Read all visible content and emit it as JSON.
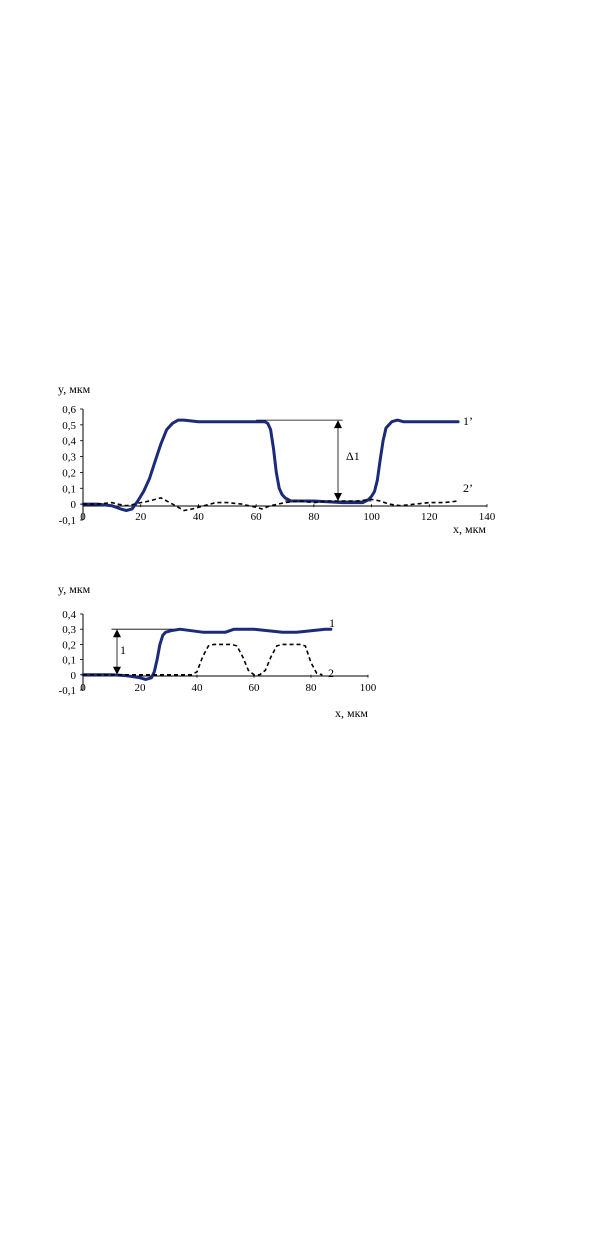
{
  "chart_data": [
    {
      "type": "line",
      "ylabel": "y, мкм",
      "xlabel": "x, мкм",
      "xlim": [
        0,
        140
      ],
      "ylim": [
        -0.1,
        0.6
      ],
      "x_ticks": [
        "0",
        "20",
        "40",
        "60",
        "80",
        "100",
        "120",
        "140"
      ],
      "y_ticks": [
        "-0,1",
        "0",
        "0,1",
        "0,2",
        "0,3",
        "0,4",
        "0,5",
        "0,6"
      ],
      "series": [
        {
          "name": "1’",
          "style": "solid",
          "color": "#1c2a7a",
          "x": [
            0,
            5,
            10,
            13,
            15,
            17,
            19,
            21,
            23,
            25,
            27,
            29,
            31,
            33,
            35,
            40,
            50,
            60,
            63,
            64,
            65,
            66,
            67,
            68,
            69,
            70,
            72,
            75,
            80,
            90,
            95,
            97,
            98,
            99,
            100,
            101,
            102,
            103,
            104,
            105,
            107,
            109,
            111,
            115,
            130
          ],
          "y": [
            0,
            0,
            -0.01,
            -0.03,
            -0.04,
            -0.03,
            0.02,
            0.08,
            0.16,
            0.27,
            0.38,
            0.47,
            0.51,
            0.53,
            0.53,
            0.52,
            0.52,
            0.52,
            0.52,
            0.51,
            0.47,
            0.35,
            0.2,
            0.1,
            0.06,
            0.04,
            0.02,
            0.02,
            0.02,
            0.01,
            0.01,
            0.01,
            0.02,
            0.03,
            0.05,
            0.08,
            0.15,
            0.28,
            0.4,
            0.48,
            0.52,
            0.53,
            0.52,
            0.52,
            0.52
          ]
        },
        {
          "name": "2’",
          "style": "dashed",
          "color": "#000000",
          "x": [
            0,
            5,
            10,
            12,
            15,
            18,
            20,
            23,
            25,
            27,
            29,
            31,
            33,
            35,
            38,
            42,
            46,
            50,
            55,
            60,
            62,
            65,
            70,
            75,
            80,
            85,
            90,
            95,
            100,
            103,
            106,
            110,
            115,
            120,
            125,
            130
          ],
          "y": [
            0,
            0,
            0.01,
            0,
            -0.01,
            0,
            0.01,
            0.02,
            0.03,
            0.04,
            0.02,
            0,
            -0.02,
            -0.04,
            -0.03,
            -0.01,
            0.01,
            0.01,
            0,
            -0.02,
            -0.03,
            -0.01,
            0.01,
            0.02,
            0.01,
            0.02,
            0.02,
            0.02,
            0.03,
            0.02,
            0,
            -0.01,
            0,
            0.01,
            0.01,
            0.02
          ]
        }
      ],
      "annotations": {
        "delta": "Δ1",
        "label_1": "1’",
        "label_2": "2’"
      }
    },
    {
      "type": "line",
      "ylabel": "y, мкм",
      "xlabel": "x, мкм",
      "xlim": [
        0,
        100
      ],
      "ylim": [
        -0.1,
        0.4
      ],
      "x_ticks": [
        "0",
        "20",
        "40",
        "60",
        "80",
        "100"
      ],
      "y_ticks": [
        "-0,1",
        "0",
        "0,1",
        "0,2",
        "0,3",
        "0,4"
      ],
      "series": [
        {
          "name": "1",
          "style": "solid",
          "color": "#1c2a7a",
          "x": [
            0,
            10,
            15,
            20,
            22,
            24,
            25,
            26,
            27,
            28,
            29,
            31,
            34,
            38,
            42,
            46,
            50,
            53,
            56,
            60,
            65,
            70,
            75,
            80,
            85,
            87
          ],
          "y": [
            0,
            0,
            -0.005,
            -0.02,
            -0.03,
            -0.02,
            0.02,
            0.1,
            0.2,
            0.26,
            0.28,
            0.29,
            0.3,
            0.29,
            0.28,
            0.28,
            0.28,
            0.3,
            0.3,
            0.3,
            0.29,
            0.28,
            0.28,
            0.29,
            0.3,
            0.3
          ]
        },
        {
          "name": "2",
          "style": "dashed",
          "color": "#000000",
          "x": [
            0,
            10,
            20,
            30,
            38,
            40,
            42,
            44,
            46,
            52,
            54,
            56,
            58,
            60,
            62,
            64,
            66,
            68,
            70,
            76,
            78,
            80,
            82,
            84
          ],
          "y": [
            0,
            0,
            0,
            0,
            0,
            0.02,
            0.12,
            0.19,
            0.2,
            0.2,
            0.19,
            0.12,
            0.03,
            0,
            0,
            0.03,
            0.12,
            0.19,
            0.2,
            0.2,
            0.19,
            0.08,
            0.01,
            0
          ]
        }
      ],
      "annotations": {
        "delta": "1",
        "label_1": "1",
        "label_2": "2"
      }
    }
  ]
}
